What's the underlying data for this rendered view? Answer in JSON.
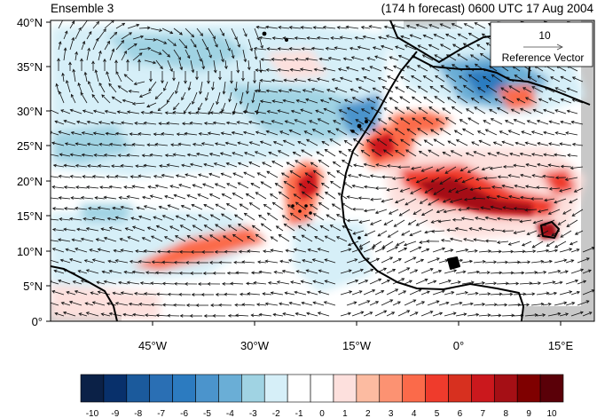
{
  "header": {
    "left_title": "Ensemble 3",
    "right_title": "(174 h forecast) 0600 UTC 17 Aug 2004"
  },
  "map": {
    "projection": "cylindrical-equidistant",
    "lon_range_deg": [
      -60,
      20
    ],
    "lat_range_deg": [
      0,
      40
    ],
    "y_ticks": [
      "0°",
      "5°N",
      "10°N",
      "15°N",
      "20°N",
      "25°N",
      "30°N",
      "35°N",
      "40°N"
    ],
    "x_ticks": [
      "45°W",
      "30°W",
      "15°W",
      "0°",
      "15°E"
    ],
    "land_outline_color": "#000000",
    "missing_data_color": "#c8c8c8"
  },
  "reference_vector": {
    "magnitude_label": "10",
    "caption": "Reference Vector"
  },
  "colorbar": {
    "labels": [
      "-10",
      "-9",
      "-8",
      "-7",
      "-6",
      "-5",
      "-4",
      "-3",
      "-2",
      "-1",
      "0",
      "1",
      "2",
      "3",
      "4",
      "5",
      "6",
      "7",
      "8",
      "9",
      "10"
    ],
    "colors": [
      "#0b2147",
      "#08306b",
      "#1b5a9c",
      "#2a6fb4",
      "#2c7bc0",
      "#4b94cc",
      "#6aaed6",
      "#a0d3e3",
      "#d6eff8",
      "#ffffff",
      "#ffffff",
      "#fde0dd",
      "#fcbba1",
      "#fc9272",
      "#fb6a4a",
      "#ef3b2c",
      "#d7301f",
      "#cb181d",
      "#a50f15",
      "#7f0000",
      "#5a0008"
    ]
  },
  "anomaly_colors": {
    "strong_positive": "#cb181d",
    "positive": "#fb6a4a",
    "weak_positive": "#fcbba1",
    "weak_negative": "#a0d3e3",
    "negative": "#4b94cc",
    "strong_negative": "#1b5a9c"
  }
}
